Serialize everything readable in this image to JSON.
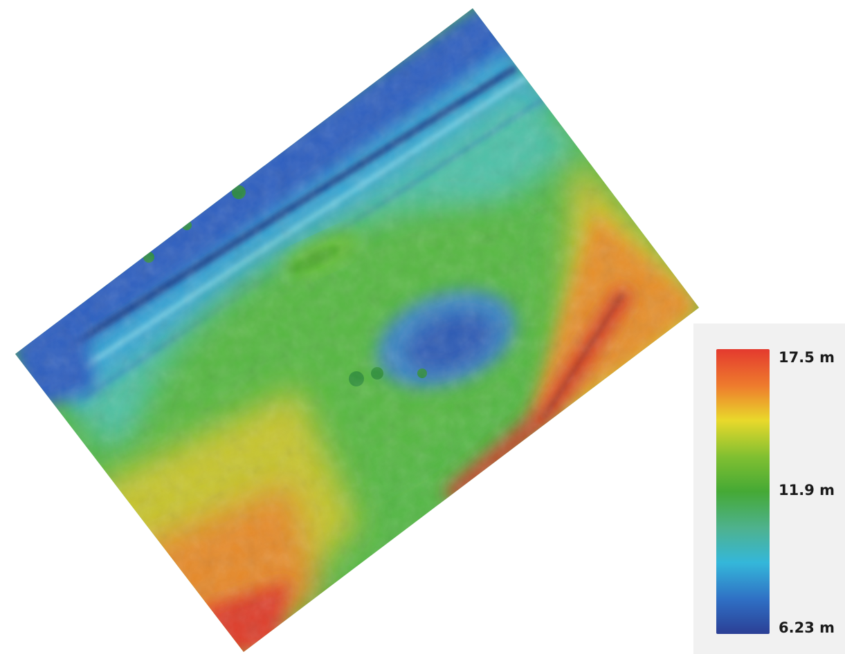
{
  "map": {
    "type": "elevation-dem-hillshade",
    "colors": {
      "low": "#2b4aa0",
      "mid_blue": "#30b4dc",
      "mid_green": "#45b335",
      "mid_yellow": "#e6e12c",
      "high": "#e43a2e"
    }
  },
  "legend": {
    "max_label": "17.5 m",
    "mid_label": "11.9 m",
    "min_label": "6.23 m",
    "max_value": 17.5,
    "mid_value": 11.9,
    "min_value": 6.23,
    "unit": "m",
    "gradient": [
      "#e43a2e",
      "#ee7c2d",
      "#e9d92b",
      "#7fbf31",
      "#45a935",
      "#4eb28f",
      "#34b7da",
      "#2f6fc4",
      "#2b3f95"
    ]
  }
}
